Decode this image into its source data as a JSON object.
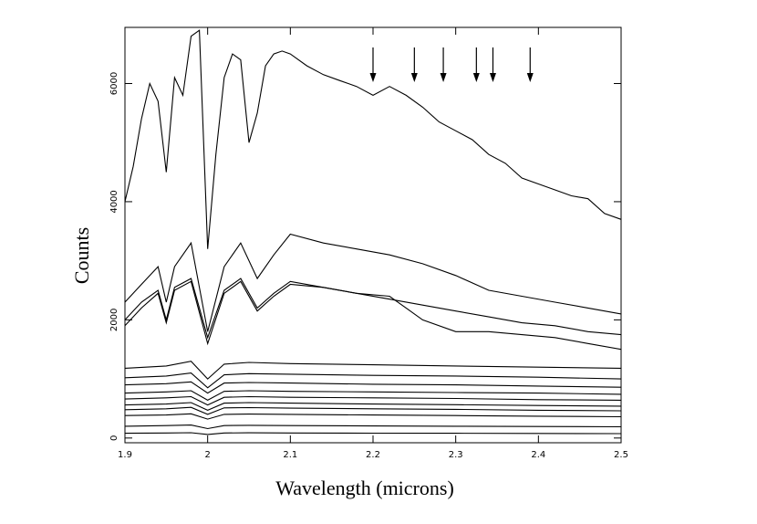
{
  "chart_data": {
    "type": "line",
    "title": "",
    "xlabel": "Wavelength (microns)",
    "ylabel": "Counts",
    "xlim": [
      1.9,
      2.5
    ],
    "ylim": [
      -80,
      6950
    ],
    "xticks": [
      "1.9",
      "2",
      "2.1",
      "2.2",
      "2.3",
      "2.4",
      "2.5"
    ],
    "yticks": [
      "0",
      "2000",
      "4000",
      "6000"
    ],
    "grid": false,
    "arrows_at": [
      2.2,
      2.25,
      2.285,
      2.325,
      2.345,
      2.39
    ],
    "series": [
      {
        "x": [
          1.9,
          1.91,
          1.92,
          1.93,
          1.94,
          1.95,
          1.96,
          1.97,
          1.98,
          1.99,
          2.0,
          2.01,
          2.02,
          2.03,
          2.04,
          2.05,
          2.06,
          2.07,
          2.08,
          2.09,
          2.1,
          2.12,
          2.14,
          2.16,
          2.18,
          2.2,
          2.22,
          2.24,
          2.26,
          2.28,
          2.3,
          2.32,
          2.34,
          2.36,
          2.38,
          2.4,
          2.42,
          2.44,
          2.46,
          2.48,
          2.5
        ],
        "values": [
          4000,
          4600,
          5400,
          6000,
          5700,
          4500,
          6100,
          5800,
          6800,
          6900,
          3200,
          4800,
          6100,
          6500,
          6400,
          5000,
          5500,
          6300,
          6500,
          6550,
          6500,
          6300,
          6150,
          6050,
          5950,
          5800,
          5950,
          5800,
          5600,
          5350,
          5200,
          5050,
          4800,
          4650,
          4400,
          4300,
          4200,
          4100,
          4050,
          3800,
          3700
        ]
      },
      {
        "x": [
          1.9,
          1.92,
          1.94,
          1.95,
          1.96,
          1.98,
          2.0,
          2.02,
          2.04,
          2.06,
          2.08,
          2.1,
          2.14,
          2.18,
          2.22,
          2.26,
          2.3,
          2.34,
          2.38,
          2.42,
          2.46,
          2.5
        ],
        "values": [
          2300,
          2600,
          2900,
          2300,
          2900,
          3300,
          1800,
          2900,
          3300,
          2700,
          3100,
          3450,
          3300,
          3200,
          3100,
          2950,
          2750,
          2500,
          2400,
          2300,
          2200,
          2100
        ]
      },
      {
        "x": [
          1.9,
          1.92,
          1.94,
          1.95,
          1.96,
          1.98,
          2.0,
          2.02,
          2.04,
          2.06,
          2.08,
          2.1,
          2.14,
          2.18,
          2.22,
          2.24,
          2.26,
          2.3,
          2.34,
          2.38,
          2.42,
          2.46,
          2.5
        ],
        "values": [
          2000,
          2300,
          2500,
          2000,
          2550,
          2700,
          1700,
          2500,
          2700,
          2200,
          2450,
          2650,
          2550,
          2450,
          2400,
          2200,
          2000,
          1800,
          1800,
          1750,
          1700,
          1600,
          1500
        ]
      },
      {
        "x": [
          1.9,
          1.92,
          1.94,
          1.95,
          1.96,
          1.98,
          2.0,
          2.02,
          2.04,
          2.06,
          2.08,
          2.1,
          2.14,
          2.18,
          2.22,
          2.26,
          2.3,
          2.34,
          2.38,
          2.42,
          2.46,
          2.5
        ],
        "values": [
          1900,
          2200,
          2450,
          1950,
          2500,
          2650,
          1600,
          2450,
          2650,
          2150,
          2400,
          2600,
          2550,
          2450,
          2350,
          2250,
          2150,
          2050,
          1950,
          1900,
          1800,
          1750
        ]
      },
      {
        "x": [
          1.9,
          1.95,
          1.98,
          2.0,
          2.02,
          2.05,
          2.1,
          2.2,
          2.3,
          2.4,
          2.5
        ],
        "values": [
          1180,
          1220,
          1300,
          1000,
          1250,
          1280,
          1260,
          1240,
          1220,
          1200,
          1180
        ]
      },
      {
        "x": [
          1.9,
          1.95,
          1.98,
          2.0,
          2.02,
          2.05,
          2.1,
          2.2,
          2.3,
          2.4,
          2.5
        ],
        "values": [
          1020,
          1050,
          1100,
          850,
          1070,
          1090,
          1080,
          1060,
          1050,
          1030,
          1000
        ]
      },
      {
        "x": [
          1.9,
          1.95,
          1.98,
          2.0,
          2.02,
          2.05,
          2.1,
          2.2,
          2.3,
          2.4,
          2.5
        ],
        "values": [
          900,
          920,
          950,
          760,
          930,
          940,
          930,
          910,
          900,
          880,
          860
        ]
      },
      {
        "x": [
          1.9,
          1.95,
          1.98,
          2.0,
          2.02,
          2.05,
          2.1,
          2.2,
          2.3,
          2.4,
          2.5
        ],
        "values": [
          760,
          780,
          800,
          640,
          790,
          800,
          790,
          780,
          770,
          760,
          740
        ]
      },
      {
        "x": [
          1.9,
          1.95,
          1.98,
          2.0,
          2.02,
          2.05,
          2.1,
          2.2,
          2.3,
          2.4,
          2.5
        ],
        "values": [
          660,
          680,
          700,
          560,
          690,
          700,
          690,
          680,
          670,
          650,
          640
        ]
      },
      {
        "x": [
          1.9,
          1.95,
          1.98,
          2.0,
          2.02,
          2.05,
          2.1,
          2.2,
          2.3,
          2.4,
          2.5
        ],
        "values": [
          560,
          575,
          600,
          470,
          590,
          600,
          590,
          575,
          565,
          550,
          540
        ]
      },
      {
        "x": [
          1.9,
          1.95,
          1.98,
          2.0,
          2.02,
          2.05,
          2.1,
          2.2,
          2.3,
          2.4,
          2.5
        ],
        "values": [
          480,
          495,
          520,
          400,
          510,
          515,
          505,
          495,
          485,
          470,
          460
        ]
      },
      {
        "x": [
          1.9,
          1.95,
          1.98,
          2.0,
          2.02,
          2.05,
          2.1,
          2.2,
          2.3,
          2.4,
          2.5
        ],
        "values": [
          380,
          390,
          410,
          320,
          400,
          405,
          400,
          390,
          380,
          370,
          360
        ]
      },
      {
        "x": [
          1.9,
          1.95,
          1.98,
          2.0,
          2.02,
          2.05,
          2.1,
          2.2,
          2.3,
          2.4,
          2.5
        ],
        "values": [
          200,
          210,
          220,
          160,
          210,
          215,
          210,
          205,
          200,
          195,
          190
        ]
      },
      {
        "x": [
          1.9,
          1.95,
          1.98,
          2.0,
          2.02,
          2.05,
          2.1,
          2.2,
          2.3,
          2.4,
          2.5
        ],
        "values": [
          80,
          85,
          90,
          60,
          85,
          88,
          85,
          82,
          80,
          78,
          75
        ]
      }
    ]
  }
}
